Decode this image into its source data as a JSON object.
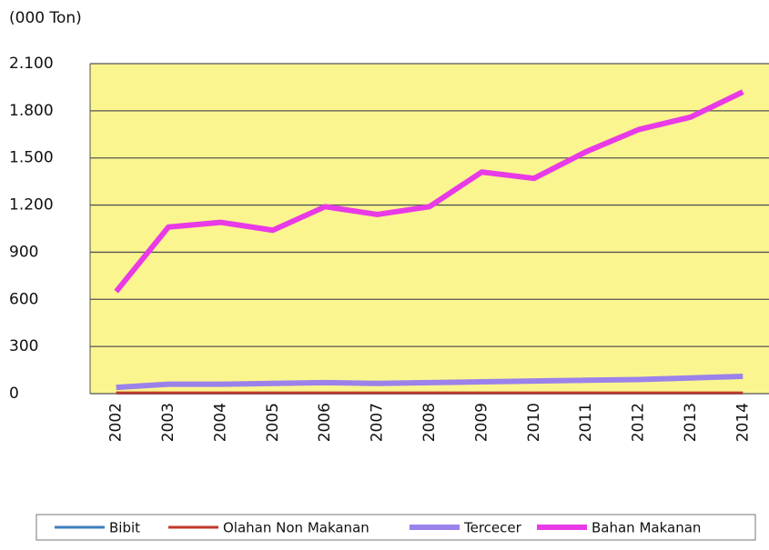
{
  "chart_data": {
    "type": "line",
    "title": "(000 Ton)",
    "categories": [
      "2002",
      "2003",
      "2004",
      "2005",
      "2006",
      "2007",
      "2008",
      "2009",
      "2010",
      "2011",
      "2012",
      "2013",
      "2014"
    ],
    "series": [
      {
        "name": "Bibit",
        "color": "#3d7fbf",
        "values": [
          3,
          3,
          3,
          3,
          3,
          3,
          3,
          3,
          3,
          3,
          3,
          3,
          3
        ]
      },
      {
        "name": "Olahan Non Makanan",
        "color": "#c0392b",
        "values": [
          5,
          5,
          5,
          5,
          5,
          5,
          5,
          5,
          5,
          5,
          5,
          5,
          5
        ]
      },
      {
        "name": "Tercecer",
        "color": "#9b82ea",
        "values": [
          40,
          60,
          60,
          65,
          70,
          65,
          70,
          75,
          80,
          85,
          90,
          100,
          110
        ]
      },
      {
        "name": "Bahan Makanan",
        "color": "#e83ae6",
        "values": [
          650,
          1060,
          1090,
          1040,
          1190,
          1140,
          1190,
          1410,
          1370,
          1540,
          1680,
          1760,
          1920
        ]
      }
    ],
    "ylim": [
      0,
      2100
    ],
    "yticks": [
      0,
      300,
      600,
      900,
      {
        "value": 1200,
        "label": "1.200"
      },
      {
        "value": 1500,
        "label": "1.500"
      },
      {
        "value": 1800,
        "label": "1.800"
      },
      {
        "value": 2100,
        "label": "2.100"
      }
    ],
    "grid": true,
    "legend": "bottom"
  }
}
